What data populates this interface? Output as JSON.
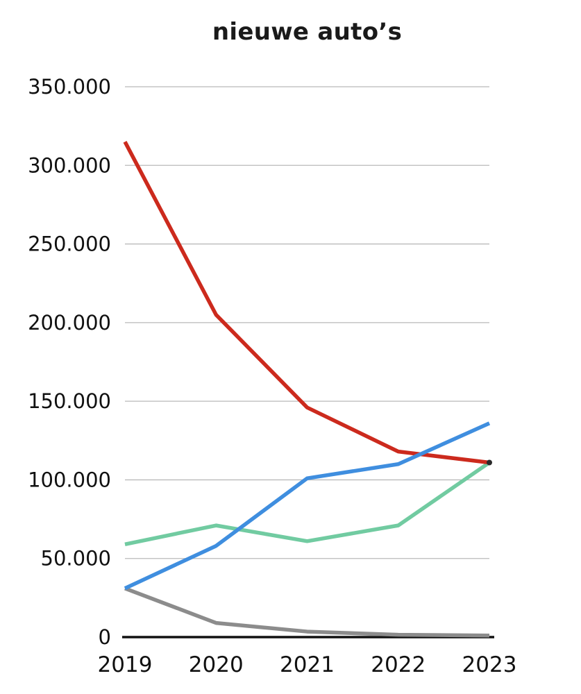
{
  "page": {
    "background": "#ffffff"
  },
  "chart_data": {
    "type": "line",
    "title": "nieuwe auto’s",
    "categories": [
      "2019",
      "2020",
      "2021",
      "2022",
      "2023"
    ],
    "x": [
      2019,
      2020,
      2021,
      2022,
      2023
    ],
    "series": [
      {
        "name": "gray-series",
        "color": "#8c8c8c",
        "values": [
          31000,
          9000,
          3500,
          1500,
          1000
        ]
      },
      {
        "name": "green-series",
        "color": "#71cba1",
        "values": [
          59000,
          71000,
          61000,
          71000,
          111000
        ]
      },
      {
        "name": "red-series",
        "color": "#cc2a1d",
        "values": [
          315000,
          205000,
          146000,
          118000,
          111000
        ]
      },
      {
        "name": "blue-series",
        "color": "#3f8edf",
        "values": [
          31000,
          58000,
          101000,
          110000,
          136000
        ]
      }
    ],
    "ylim": [
      0,
      350000
    ],
    "ytick_step": 50000,
    "ytick_labels": [
      "0",
      "50.000",
      "100.000",
      "150.000",
      "200.000",
      "250.000",
      "300.000",
      "350.000"
    ],
    "xlabel": "",
    "ylabel": "",
    "grid": true,
    "legend": "none",
    "axis_color": "#111111",
    "grid_color": "#b9b9b9",
    "end_marker": {
      "x": 2023,
      "value": 111000,
      "color": "#2a2a2a"
    }
  }
}
